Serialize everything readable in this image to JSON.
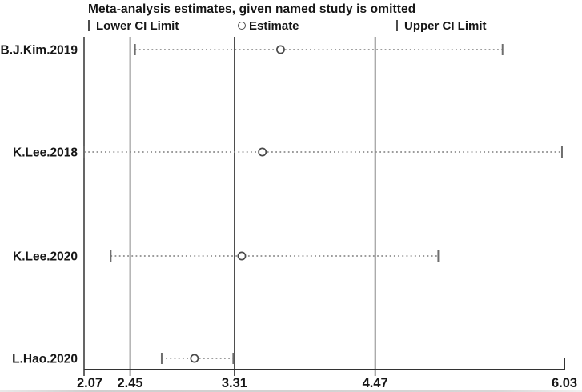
{
  "title": "Meta-analysis estimates, given named study is omitted",
  "legend": {
    "lower_label": "Lower CI Limit",
    "estimate_label": "Estimate",
    "upper_label": "Upper CI Limit"
  },
  "colors": {
    "text": "#161616",
    "reference_line": "#3f3f3f",
    "axis_line": "#333333",
    "ci_dotted_line": "#8f8f8f",
    "ci_end_tick": "#6e6e6e",
    "estimate_stroke": "#4a4a4a",
    "estimate_fill": "#ffffff",
    "background": "#ffffff"
  },
  "chart_data": {
    "type": "scatter",
    "variant": "leave-one-out-forest",
    "title": "Meta-analysis estimates, given named study is omitted",
    "categories": [
      "B.J.Kim.2019",
      "K.Lee.2018",
      "K.Lee.2020",
      "L.Hao.2020"
    ],
    "series": [
      {
        "name": "Lower CI Limit",
        "values": [
          2.49,
          2.07,
          2.29,
          2.71
        ]
      },
      {
        "name": "Estimate",
        "values": [
          3.69,
          3.54,
          3.37,
          2.98
        ]
      },
      {
        "name": "Upper CI Limit",
        "values": [
          5.52,
          6.01,
          4.99,
          3.3
        ]
      }
    ],
    "x_axis": {
      "range": [
        2.07,
        6.03
      ],
      "ticks": [
        2.07,
        2.45,
        3.31,
        4.47,
        6.03
      ],
      "tick_labels": [
        "2.07",
        "2.45",
        "3.31",
        "4.47",
        "6.03"
      ],
      "reference_lines": [
        2.07,
        2.45,
        3.31,
        4.47
      ]
    },
    "ylabel": "",
    "xlabel": "",
    "grid": "vertical-reference-lines-only",
    "legend_position": "top"
  }
}
